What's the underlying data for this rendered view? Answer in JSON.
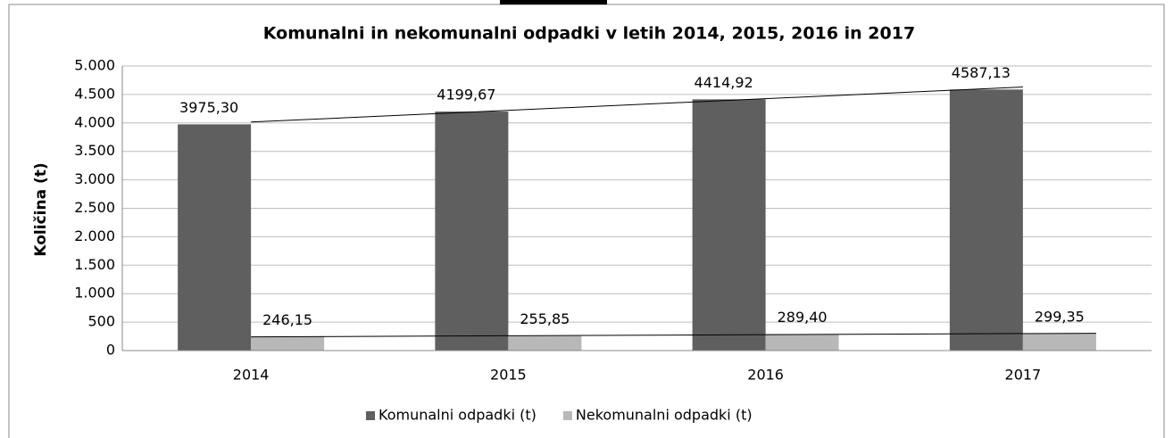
{
  "chart_data": {
    "type": "bar",
    "title": "Komunalni in nekomunalni odpadki v letih  2014, 2015, 2016 in 2017",
    "y_label": "Količina (t)",
    "categories": [
      "2014",
      "2015",
      "2016",
      "2017"
    ],
    "series": [
      {
        "name": "Komunalni odpadki (t)",
        "color": "#5f5f5f",
        "values": [
          3975.3,
          4199.67,
          4414.92,
          4587.13
        ],
        "value_labels": [
          "3975,30",
          "4199,67",
          "4414,92",
          "4587,13"
        ]
      },
      {
        "name": "Nekomunalni odpadki (t)",
        "color": "#b8b8b8",
        "values": [
          246.15,
          255.85,
          289.4,
          299.35
        ],
        "value_labels": [
          "246,15",
          "255,85",
          "289,40",
          "299,35"
        ]
      }
    ],
    "ylim": [
      0,
      5000
    ],
    "yticks": [
      0,
      500,
      {
        "value": 1000,
        "label": "1.000"
      },
      {
        "value": 1500,
        "label": "1.500"
      },
      {
        "value": 2000,
        "label": "2.000"
      },
      {
        "value": 2500,
        "label": "2.500"
      },
      {
        "value": 3000,
        "label": "3.000"
      },
      {
        "value": 3500,
        "label": "3.500"
      },
      {
        "value": 4000,
        "label": "4.000"
      },
      {
        "value": 4500,
        "label": "4.500"
      },
      {
        "value": 5000,
        "label": "5.000"
      }
    ],
    "grid": true,
    "trendline": true,
    "legend": "bottom"
  }
}
